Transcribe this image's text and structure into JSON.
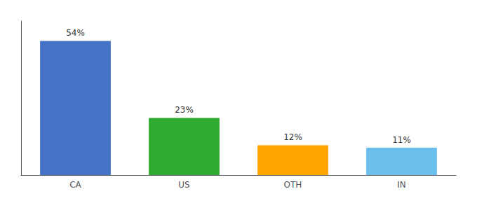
{
  "chart_data": {
    "type": "bar",
    "categories": [
      "CA",
      "US",
      "OTH",
      "IN"
    ],
    "values": [
      54,
      23,
      12,
      11
    ],
    "value_labels": [
      "54%",
      "23%",
      "12%",
      "11%"
    ],
    "data_labels": true,
    "colors": [
      "#4472C4",
      "#2EAA2E",
      "#FFA500",
      "#6BBFED"
    ],
    "ylim": [
      0,
      62
    ],
    "yticks": [],
    "tick_labels": "x",
    "grid": false
  }
}
